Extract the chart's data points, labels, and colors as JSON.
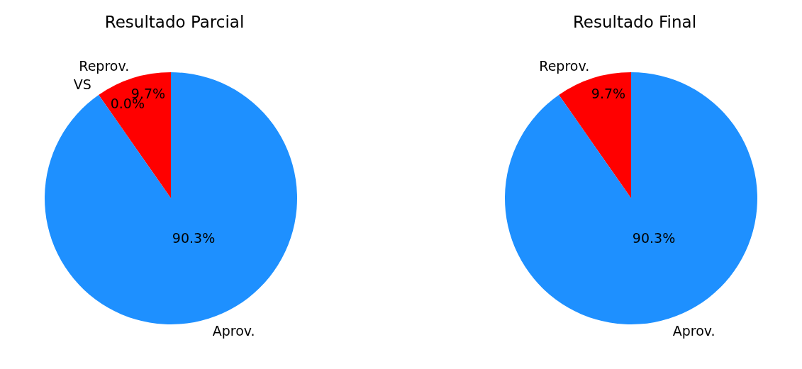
{
  "chart_data": [
    {
      "type": "pie",
      "title": "Resultado Parcial",
      "categories": [
        "Reprov.",
        "VS",
        "Aprov."
      ],
      "values": [
        9.7,
        0.0,
        90.3
      ],
      "colors": [
        "#ff0000",
        "#ffa500",
        "#1e90ff"
      ],
      "value_labels": [
        "9.7%",
        "0.0%",
        "90.3%"
      ],
      "legend": false
    },
    {
      "type": "pie",
      "title": "Resultado Final",
      "categories": [
        "Reprov.",
        "Aprov."
      ],
      "values": [
        9.7,
        90.3
      ],
      "colors": [
        "#ff0000",
        "#1e90ff"
      ],
      "value_labels": [
        "9.7%",
        "90.3%"
      ],
      "legend": false
    }
  ]
}
